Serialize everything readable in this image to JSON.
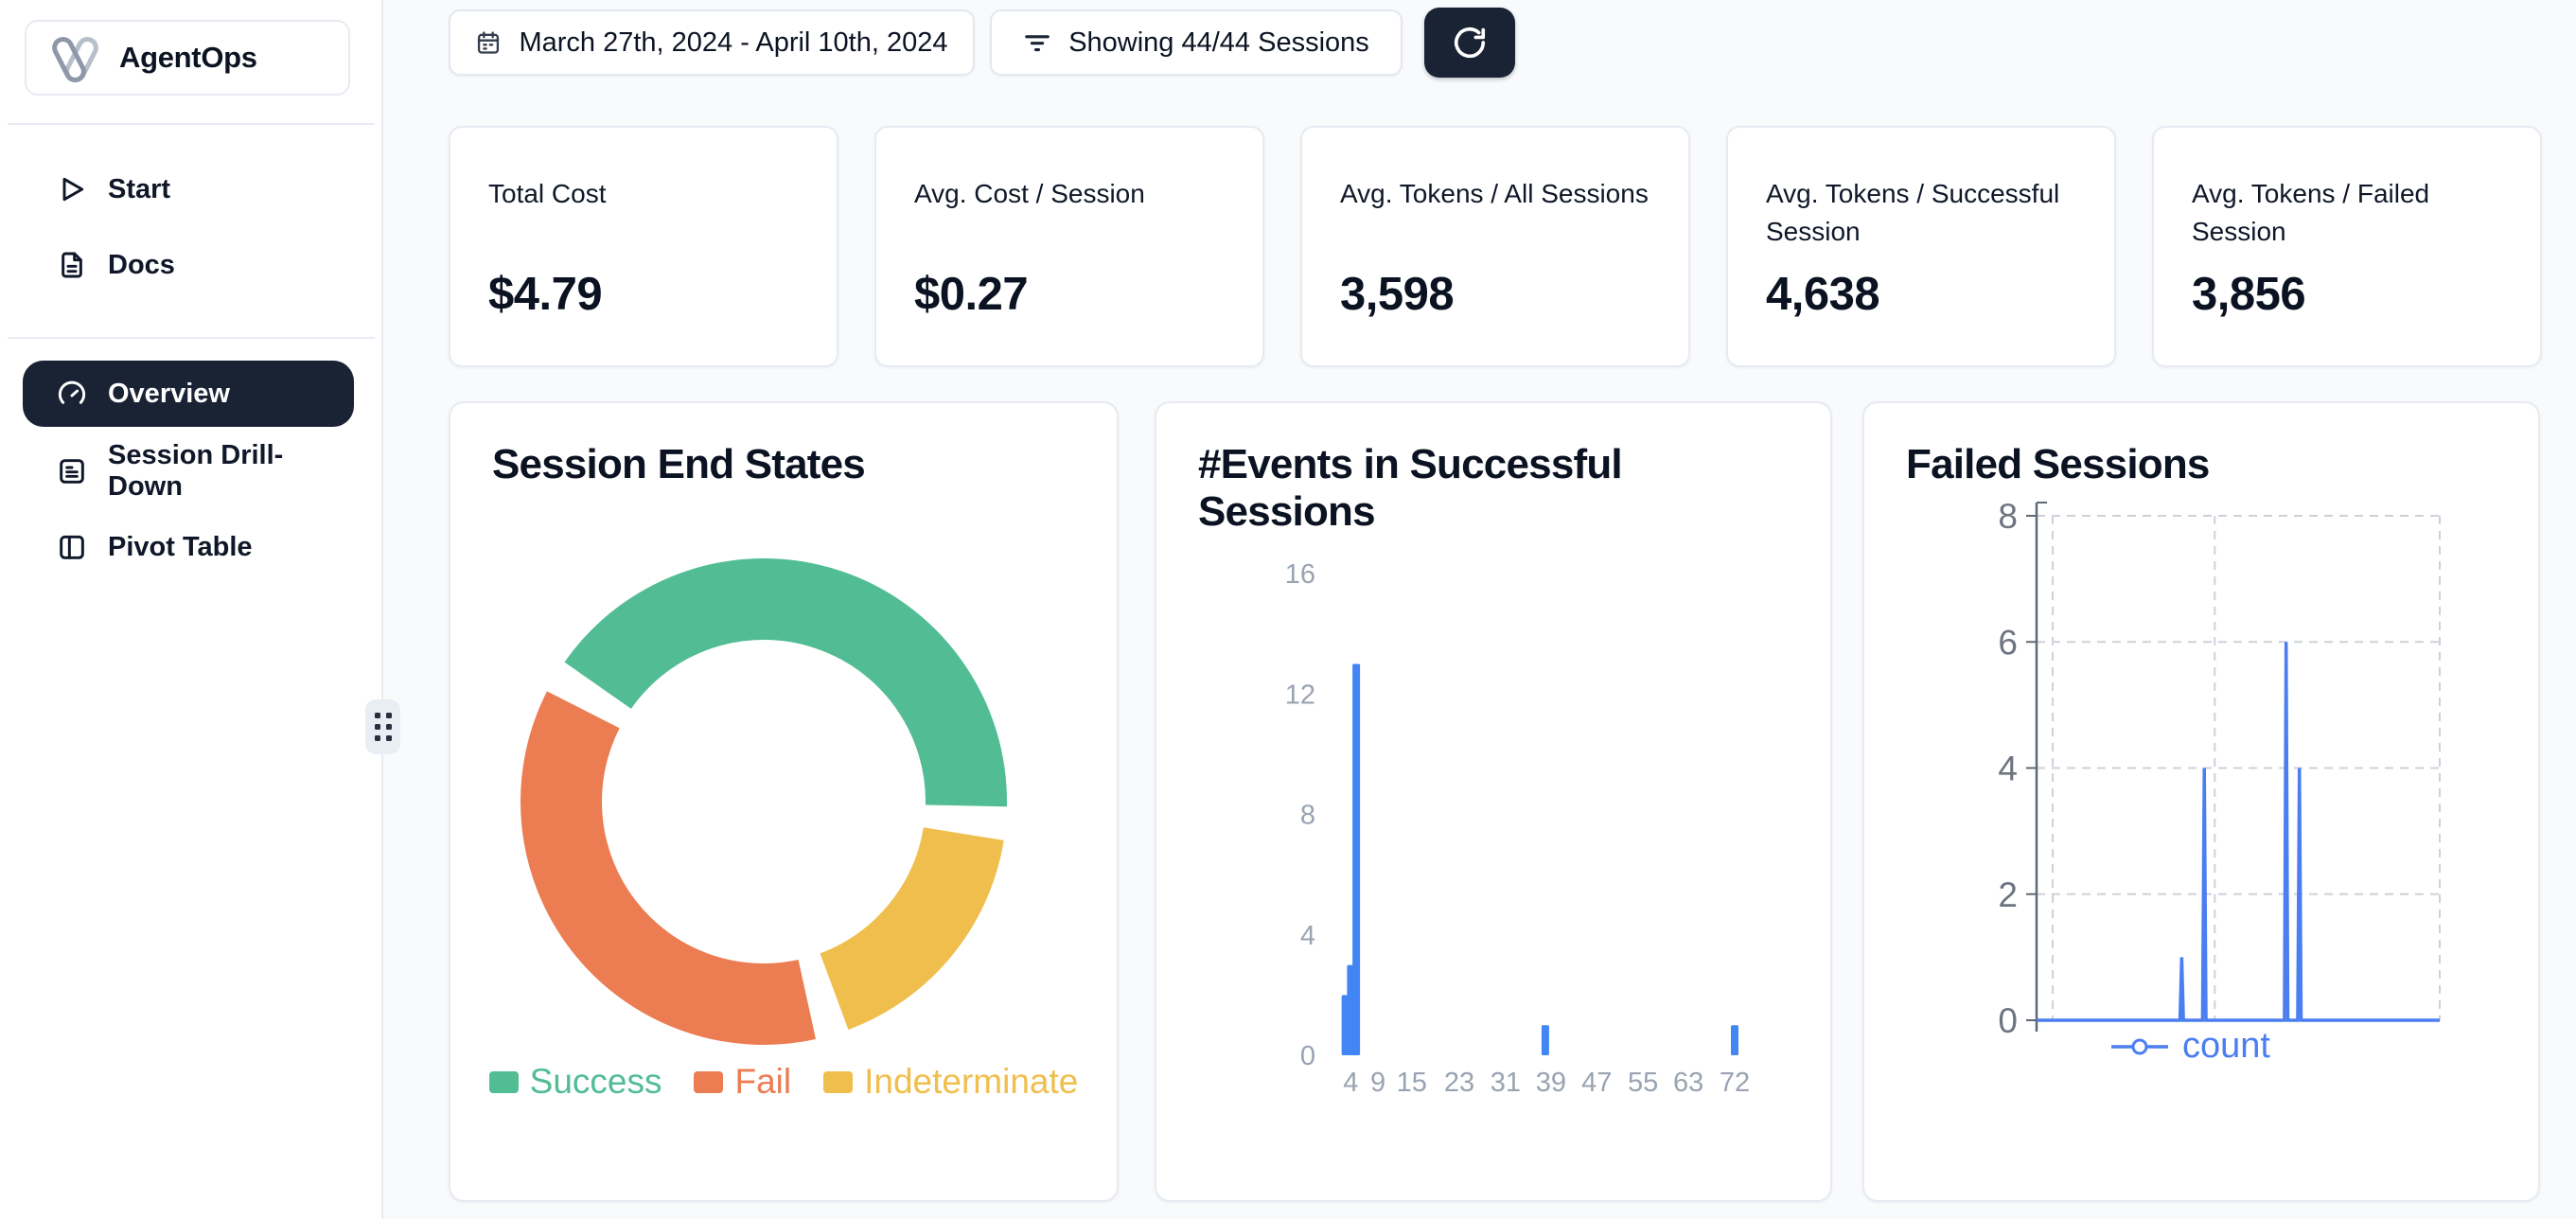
{
  "sidebar": {
    "logo_text": "AgentOps",
    "items": [
      {
        "label": "Start",
        "icon": "play-icon"
      },
      {
        "label": "Docs",
        "icon": "file-text-icon"
      },
      {
        "label": "Overview",
        "icon": "gauge-icon",
        "selected": true
      },
      {
        "label": "Session Drill-Down",
        "icon": "menu-square-icon"
      },
      {
        "label": "Pivot Table",
        "icon": "panel-left-icon"
      }
    ]
  },
  "toolbar": {
    "date_range": "March 27th, 2024 - April 10th, 2024",
    "date_icon": "calendar-icon",
    "filter_label": "Showing 44/44 Sessions",
    "filter_icon": "filter-lines-icon",
    "refresh_icon": "refresh-icon"
  },
  "stats": [
    {
      "label": "Total Cost",
      "value": "$4.79"
    },
    {
      "label": "Avg. Cost / Session",
      "value": "$0.27"
    },
    {
      "label": "Avg. Tokens / All Sessions",
      "value": "3,598"
    },
    {
      "label": "Avg. Tokens / Successful Session",
      "value": "4,638"
    },
    {
      "label": "Avg. Tokens / Failed Session",
      "value": "3,856"
    }
  ],
  "chart_data": [
    {
      "type": "pie",
      "variant": "donut",
      "title": "Session End States",
      "segments": [
        {
          "label": "Success",
          "pct": 43.5,
          "color": "#52bd95"
        },
        {
          "label": "Fail",
          "pct": 38.5,
          "color": "#ec7c52"
        },
        {
          "label": "Indeterminate",
          "pct": 18.0,
          "color": "#f0be4c"
        }
      ],
      "values_estimated": true,
      "legend_position": "bottom"
    },
    {
      "type": "bar",
      "title": "#Events in Successful Sessions",
      "x_ticks": [
        4,
        9,
        15,
        23,
        31,
        39,
        47,
        55,
        63,
        72
      ],
      "bars": [
        {
          "x": 3,
          "count": 2
        },
        {
          "x": 4,
          "count": 3
        },
        {
          "x": 5,
          "count": 13
        },
        {
          "x": 38,
          "count": 1
        },
        {
          "x": 72,
          "count": 1
        }
      ],
      "ylim": [
        0,
        16
      ],
      "y_ticks": [
        0,
        4,
        8,
        12,
        16
      ],
      "bar_color": "#4285f4",
      "grid": false
    },
    {
      "type": "line",
      "title": "Failed Sessions",
      "series": [
        {
          "name": "count",
          "color": "#4b7ef1",
          "baseline": 0,
          "spikes": [
            {
              "x_frac": 0.36,
              "y": 1
            },
            {
              "x_frac": 0.416,
              "y": 4
            },
            {
              "x_frac": 0.619,
              "y": 6
            },
            {
              "x_frac": 0.652,
              "y": 4
            }
          ]
        }
      ],
      "ylim": [
        0,
        8
      ],
      "y_ticks": [
        0,
        2,
        4,
        6,
        8
      ],
      "x_tick_labels": [],
      "grid": "dashed",
      "legend_position": "bottom"
    }
  ],
  "colors": {
    "accent_dark": "#1a2334",
    "background": "#f8fafc",
    "card_border": "#e7ebf1",
    "success_green": "#52bd95",
    "fail_orange": "#ec7c52",
    "indeterminate_yellow": "#f0be4c",
    "bar_blue": "#4285f4",
    "line_blue": "#4b7ef1",
    "axis_gray_light": "#9aa3b1",
    "axis_gray_dark": "#6e7580"
  }
}
